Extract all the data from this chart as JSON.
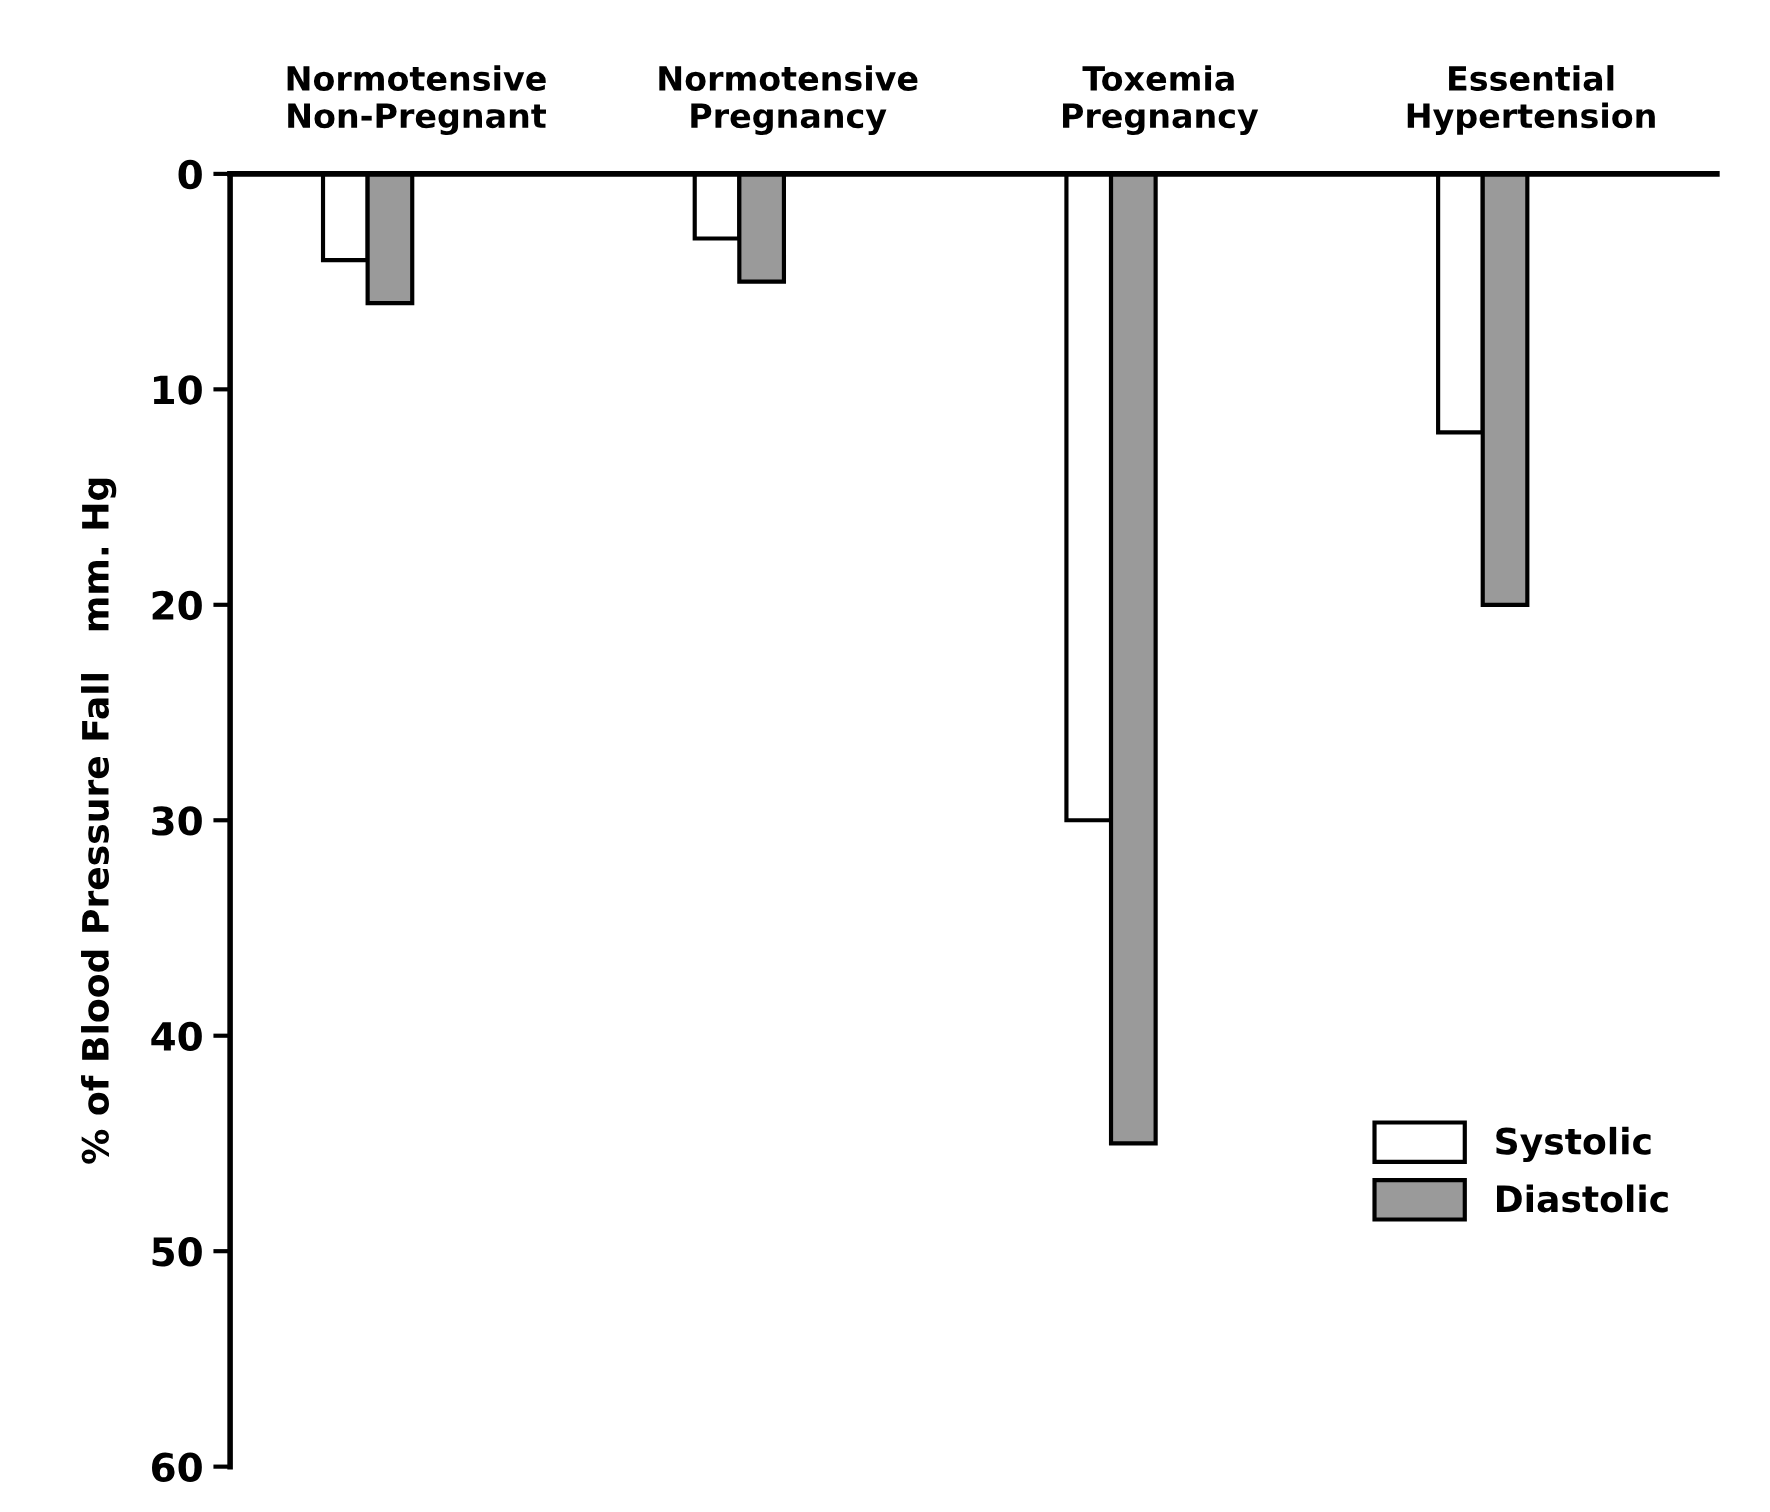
{
  "chart_data": {
    "type": "bar",
    "categories": [
      "Normotensive\nNon-Pregnant",
      "Normotensive\nPregnancy",
      "Toxemia\nPregnancy",
      "Essential\nHypertension"
    ],
    "ylabel": "% of Blood Pressure Fall   mm. Hg",
    "ylim": [
      60,
      0
    ],
    "yticks": [
      0,
      10,
      20,
      30,
      40,
      50,
      60
    ],
    "series": [
      {
        "name": "Systolic",
        "color": "#ffffff",
        "values": [
          4,
          3,
          30,
          12
        ]
      },
      {
        "name": "Diastolic",
        "color": "#9a9a9a",
        "values": [
          6,
          5,
          45,
          20
        ]
      }
    ],
    "grid": false,
    "legend": "bottom right"
  }
}
